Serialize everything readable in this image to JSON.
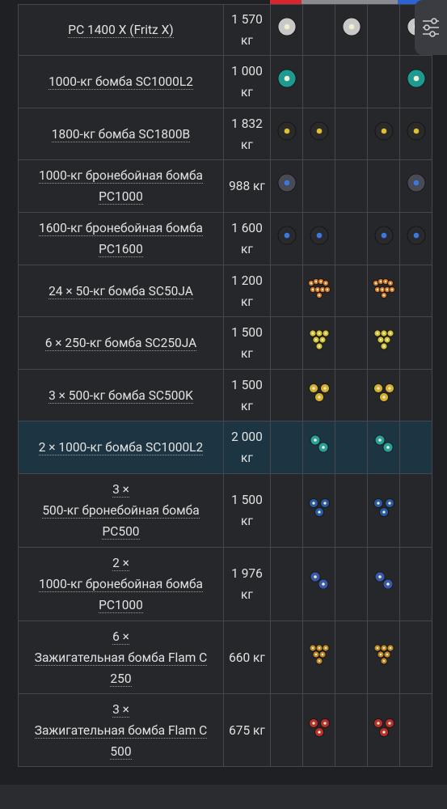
{
  "table": {
    "rows": [
      {
        "name": [
          "PC 1400 X (Fritz X)"
        ],
        "weight": "1 570 кг"
      },
      {
        "name": [
          "1000-кг бомба SC1000L2"
        ],
        "weight": "1 000 кг"
      },
      {
        "name": [
          "1800-кг бомба SC1800B"
        ],
        "weight": "1 832 кг"
      },
      {
        "name": [
          "1000-кг бронебойная бомба",
          "PC1000"
        ],
        "weight": "988 кг"
      },
      {
        "name": [
          "1600-кг бронебойная бомба",
          "PC1600"
        ],
        "weight": "1 600 кг"
      },
      {
        "name": [
          "24 × 50-кг бомба SC50JA"
        ],
        "weight": "1 200 кг"
      },
      {
        "name": [
          "6 × 250-кг бомба SC250JA"
        ],
        "weight": "1 500 кг"
      },
      {
        "name": [
          "3 × 500-кг бомба SC500K"
        ],
        "weight": "1 500 кг"
      },
      {
        "name": [
          "2 × 1000-кг бомба SC1000L2"
        ],
        "weight": "2 000 кг"
      },
      {
        "name": [
          "3 ×",
          "500-кг бронебойная бомба",
          "PC500"
        ],
        "weight": "1 500 кг"
      },
      {
        "name": [
          "2 ×",
          "1000-кг бронебойная бомба",
          "PC1000"
        ],
        "weight": "1 976 кг"
      },
      {
        "name": [
          "6 ×",
          "Зажигательная бомба Flam C",
          "250"
        ],
        "weight": "660 кг"
      },
      {
        "name": [
          "3 ×",
          "Зажигательная бомба Flam C",
          "500"
        ],
        "weight": "675 кг"
      }
    ]
  }
}
